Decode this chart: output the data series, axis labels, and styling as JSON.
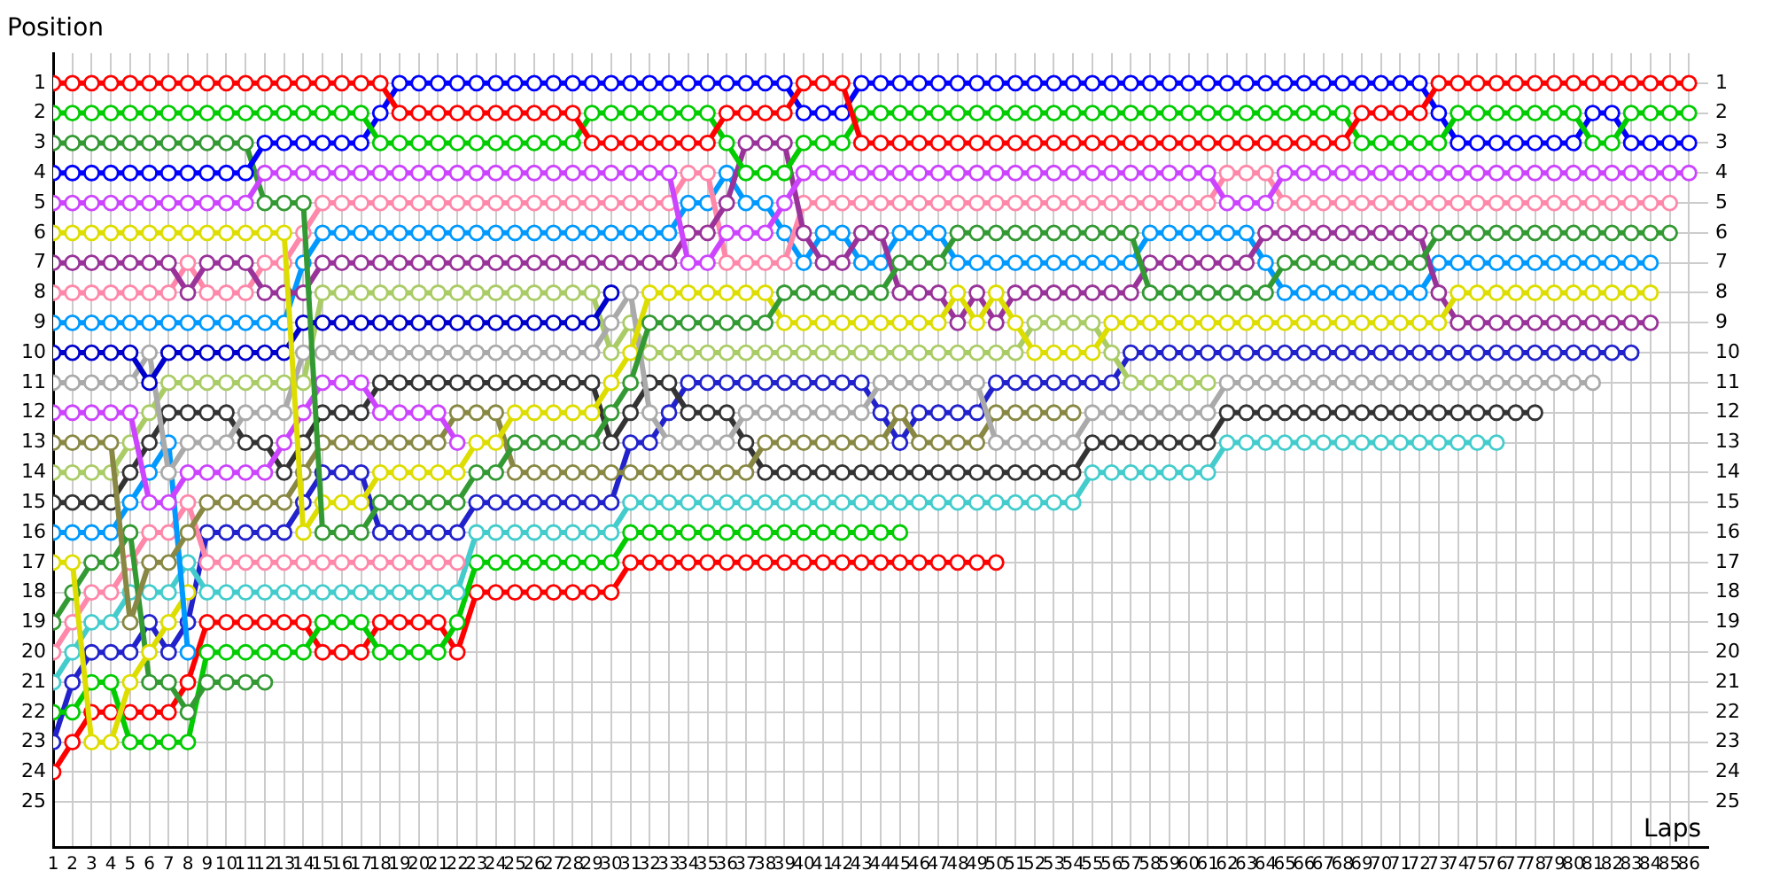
{
  "chart_data": {
    "type": "line",
    "xlabel": "Laps",
    "ylabel": "Position",
    "grid": true,
    "marker": "circle",
    "line_style": "solid",
    "x": [
      1,
      2,
      3,
      4,
      5,
      6,
      7,
      8,
      9,
      10,
      11,
      12,
      13,
      14,
      15,
      16,
      17,
      18,
      19,
      20,
      21,
      22,
      23,
      24,
      25,
      26,
      27,
      28,
      29,
      30,
      31,
      32,
      33,
      34,
      35,
      36,
      37,
      38,
      39,
      40,
      41,
      42,
      43,
      44,
      45,
      46,
      47,
      48,
      49,
      50,
      51,
      52,
      53,
      54,
      55,
      56,
      57,
      58,
      59,
      60,
      61,
      62,
      63,
      64,
      65,
      66,
      67,
      68,
      69,
      70,
      71,
      72,
      73,
      74,
      75,
      76,
      77,
      78,
      79,
      80,
      81,
      82,
      83,
      84,
      85,
      86
    ],
    "xlim": [
      1,
      87
    ],
    "xticks": [
      1,
      2,
      3,
      4,
      5,
      6,
      7,
      8,
      9,
      10,
      11,
      12,
      13,
      14,
      15,
      16,
      17,
      18,
      19,
      20,
      21,
      22,
      23,
      24,
      25,
      26,
      27,
      28,
      29,
      30,
      31,
      32,
      33,
      34,
      35,
      36,
      37,
      38,
      39,
      40,
      41,
      42,
      43,
      44,
      45,
      46,
      47,
      48,
      49,
      50,
      51,
      52,
      53,
      54,
      55,
      56,
      57,
      58,
      59,
      60,
      61,
      62,
      63,
      64,
      65,
      66,
      67,
      68,
      69,
      70,
      71,
      72,
      73,
      74,
      75,
      76,
      77,
      78,
      79,
      80,
      81,
      82,
      83,
      84,
      85,
      86
    ],
    "ylim": [
      26.5,
      0
    ],
    "yticks": [
      1,
      2,
      3,
      4,
      5,
      6,
      7,
      8,
      9,
      10,
      11,
      12,
      13,
      14,
      15,
      16,
      17,
      18,
      19,
      20,
      21,
      22,
      23,
      24,
      25
    ],
    "y2lim": [
      26.5,
      0
    ],
    "y2ticks": [
      1,
      2,
      3,
      4,
      5,
      6,
      7,
      8,
      9,
      10,
      11,
      12,
      13,
      14,
      15,
      16,
      17,
      18,
      19,
      20,
      21,
      22,
      23,
      24,
      25
    ],
    "series": [
      {
        "color": "#ff0000",
        "values": [
          1,
          1,
          1,
          1,
          1,
          1,
          1,
          1,
          1,
          1,
          1,
          1,
          1,
          1,
          1,
          1,
          1,
          1,
          2,
          2,
          2,
          2,
          2,
          2,
          2,
          2,
          2,
          2,
          3,
          3,
          3,
          3,
          3,
          3,
          3,
          2,
          2,
          2,
          2,
          1,
          1,
          1,
          3,
          3,
          3,
          3,
          3,
          3,
          3,
          3,
          3,
          3,
          3,
          3,
          3,
          3,
          3,
          3,
          3,
          3,
          3,
          3,
          3,
          3,
          3,
          3,
          3,
          3,
          2,
          2,
          2,
          2,
          1,
          1,
          1,
          1,
          1,
          1,
          1,
          1,
          1,
          1,
          1,
          1,
          1,
          1
        ]
      },
      {
        "color": "#00cc00",
        "values": [
          2,
          2,
          2,
          2,
          2,
          2,
          2,
          2,
          2,
          2,
          2,
          2,
          2,
          2,
          2,
          2,
          2,
          3,
          3,
          3,
          3,
          3,
          3,
          3,
          3,
          3,
          3,
          3,
          2,
          2,
          2,
          2,
          2,
          2,
          2,
          3,
          4,
          4,
          4,
          3,
          3,
          3,
          2,
          2,
          2,
          2,
          2,
          2,
          2,
          2,
          2,
          2,
          2,
          2,
          2,
          2,
          2,
          2,
          2,
          2,
          2,
          2,
          2,
          2,
          2,
          2,
          2,
          2,
          3,
          3,
          3,
          3,
          3,
          2,
          2,
          2,
          2,
          2,
          2,
          2,
          3,
          3,
          2,
          2,
          2,
          2
        ]
      },
      {
        "color": "#0000ff",
        "values": [
          4,
          4,
          4,
          4,
          4,
          4,
          4,
          4,
          4,
          4,
          4,
          3,
          3,
          3,
          3,
          3,
          3,
          2,
          1,
          1,
          1,
          1,
          1,
          1,
          1,
          1,
          1,
          1,
          1,
          1,
          1,
          1,
          1,
          1,
          1,
          1,
          1,
          1,
          1,
          2,
          2,
          2,
          1,
          1,
          1,
          1,
          1,
          1,
          1,
          1,
          1,
          1,
          1,
          1,
          1,
          1,
          1,
          1,
          1,
          1,
          1,
          1,
          1,
          1,
          1,
          1,
          1,
          1,
          1,
          1,
          1,
          1,
          2,
          3,
          3,
          3,
          3,
          3,
          3,
          3,
          2,
          2,
          3,
          3,
          3,
          3
        ]
      },
      {
        "color": "#cc44ff",
        "values": [
          5,
          5,
          5,
          5,
          5,
          5,
          5,
          5,
          5,
          5,
          5,
          4,
          4,
          4,
          4,
          4,
          4,
          4,
          4,
          4,
          4,
          4,
          4,
          4,
          4,
          4,
          4,
          4,
          4,
          4,
          4,
          4,
          4,
          7,
          7,
          6,
          6,
          6,
          5,
          4,
          4,
          4,
          4,
          4,
          4,
          4,
          4,
          4,
          4,
          4,
          4,
          4,
          4,
          4,
          4,
          4,
          4,
          4,
          4,
          4,
          4,
          5,
          5,
          5,
          4,
          4,
          4,
          4,
          4,
          4,
          4,
          4,
          4,
          4,
          4,
          4,
          4,
          4,
          4,
          4,
          4,
          4,
          4,
          4,
          4,
          4
        ]
      },
      {
        "color": "#339933",
        "values": [
          3,
          3,
          3,
          3,
          3,
          3,
          3,
          3,
          3,
          3,
          3,
          5,
          5,
          5,
          16,
          16,
          16,
          15,
          15,
          15,
          15,
          15,
          14,
          14,
          13,
          13,
          13,
          13,
          13,
          12,
          11,
          9,
          9,
          9,
          9,
          9,
          9,
          9,
          8,
          8,
          8,
          8,
          8,
          8,
          7,
          7,
          7,
          6,
          6,
          6,
          6,
          6,
          6,
          6,
          6,
          6,
          6,
          8,
          8,
          8,
          8,
          8,
          8,
          8,
          7,
          7,
          7,
          7,
          7,
          7,
          7,
          7,
          6,
          6,
          6,
          6,
          6,
          6,
          6,
          6,
          6,
          6,
          6,
          6,
          6,
          null
        ]
      },
      {
        "color": "#dddd00",
        "values": [
          6,
          6,
          6,
          6,
          6,
          6,
          6,
          6,
          6,
          6,
          6,
          6,
          6,
          16,
          15,
          15,
          15,
          14,
          14,
          14,
          14,
          14,
          13,
          13,
          12,
          12,
          12,
          12,
          12,
          11,
          10,
          8,
          8,
          8,
          8,
          8,
          8,
          8,
          9,
          9,
          9,
          9,
          9,
          9,
          9,
          9,
          9,
          8,
          9,
          8,
          9,
          10,
          10,
          10,
          10,
          9,
          9,
          9,
          9,
          9,
          9,
          9,
          9,
          9,
          9,
          9,
          9,
          9,
          9,
          9,
          9,
          9,
          9,
          8,
          8,
          8,
          8,
          8,
          8,
          8,
          8,
          8,
          8,
          8,
          null,
          null
        ]
      },
      {
        "color": "#993399",
        "values": [
          7,
          7,
          7,
          7,
          7,
          7,
          7,
          8,
          7,
          7,
          7,
          8,
          8,
          8,
          7,
          7,
          7,
          7,
          7,
          7,
          7,
          7,
          7,
          7,
          7,
          7,
          7,
          7,
          7,
          7,
          7,
          7,
          7,
          6,
          6,
          5,
          3,
          3,
          3,
          6,
          7,
          7,
          6,
          6,
          8,
          8,
          8,
          9,
          8,
          9,
          8,
          8,
          8,
          8,
          8,
          8,
          8,
          7,
          7,
          7,
          7,
          7,
          7,
          6,
          6,
          6,
          6,
          6,
          6,
          6,
          6,
          6,
          8,
          9,
          9,
          9,
          9,
          9,
          9,
          9,
          9,
          9,
          9,
          9,
          null,
          null
        ]
      },
      {
        "color": "#ff88aa",
        "values": [
          8,
          8,
          8,
          8,
          8,
          8,
          8,
          7,
          8,
          8,
          8,
          7,
          7,
          6,
          5,
          5,
          5,
          5,
          5,
          5,
          5,
          5,
          5,
          5,
          5,
          5,
          5,
          5,
          5,
          5,
          5,
          5,
          5,
          4,
          4,
          7,
          7,
          7,
          7,
          5,
          5,
          5,
          5,
          5,
          5,
          5,
          5,
          5,
          5,
          5,
          5,
          5,
          5,
          5,
          5,
          5,
          5,
          5,
          5,
          5,
          5,
          4,
          4,
          4,
          5,
          5,
          5,
          5,
          5,
          5,
          5,
          5,
          5,
          5,
          5,
          5,
          5,
          5,
          5,
          5,
          5,
          5,
          5,
          5,
          5,
          null
        ]
      },
      {
        "color": "#0099ff",
        "values": [
          9,
          9,
          9,
          9,
          9,
          9,
          9,
          9,
          9,
          9,
          9,
          9,
          9,
          7,
          6,
          6,
          6,
          6,
          6,
          6,
          6,
          6,
          6,
          6,
          6,
          6,
          6,
          6,
          6,
          6,
          6,
          6,
          6,
          5,
          5,
          4,
          5,
          5,
          6,
          7,
          6,
          6,
          7,
          7,
          6,
          6,
          6,
          7,
          7,
          7,
          7,
          7,
          7,
          7,
          7,
          7,
          7,
          6,
          6,
          6,
          6,
          6,
          6,
          7,
          8,
          8,
          8,
          8,
          8,
          8,
          8,
          8,
          7,
          7,
          7,
          7,
          7,
          7,
          7,
          7,
          7,
          7,
          7,
          7,
          null,
          null
        ]
      },
      {
        "color": "#0000cc",
        "values": [
          10,
          10,
          10,
          10,
          10,
          11,
          10,
          10,
          10,
          10,
          10,
          10,
          10,
          9,
          9,
          9,
          9,
          9,
          9,
          9,
          9,
          9,
          9,
          9,
          9,
          9,
          9,
          9,
          9,
          8,
          null,
          null,
          null,
          null,
          null,
          null,
          null,
          null,
          null,
          null,
          null,
          null,
          null,
          null,
          null,
          null,
          null,
          null,
          null,
          null,
          null,
          null,
          null,
          null,
          null,
          null,
          null,
          null,
          null,
          null,
          null,
          null,
          null,
          null,
          null,
          null,
          null,
          null,
          null,
          null,
          null,
          null,
          null,
          null,
          null,
          null,
          null,
          null,
          null,
          null,
          null,
          null,
          null,
          null,
          null,
          null
        ]
      },
      {
        "color": "#aaaaaa",
        "values": [
          11,
          11,
          11,
          11,
          11,
          10,
          14,
          13,
          13,
          13,
          12,
          12,
          12,
          10,
          10,
          10,
          10,
          10,
          10,
          10,
          10,
          10,
          10,
          10,
          10,
          10,
          10,
          10,
          10,
          9,
          8,
          12,
          13,
          13,
          13,
          13,
          12,
          12,
          12,
          12,
          12,
          12,
          12,
          11,
          11,
          11,
          11,
          11,
          11,
          13,
          13,
          13,
          13,
          13,
          12,
          12,
          12,
          12,
          12,
          12,
          12,
          11,
          11,
          11,
          11,
          11,
          11,
          11,
          11,
          11,
          11,
          11,
          11,
          11,
          11,
          11,
          11,
          11,
          11,
          11,
          11,
          null,
          null,
          null,
          null,
          null
        ]
      },
      {
        "color": "#cc44ff",
        "values": [
          12,
          12,
          12,
          12,
          12,
          15,
          15,
          14,
          14,
          14,
          14,
          14,
          13,
          12,
          11,
          11,
          11,
          12,
          12,
          12,
          12,
          13,
          null,
          null,
          null,
          null,
          null,
          null,
          null,
          null,
          null,
          null,
          null,
          null,
          null,
          null,
          null,
          null,
          null,
          null,
          null,
          null,
          null,
          null,
          null,
          null,
          null,
          null,
          null,
          null,
          null,
          null,
          null,
          null,
          null,
          null,
          null,
          null,
          null,
          null,
          null,
          null,
          null,
          null,
          null,
          null,
          null,
          null,
          null,
          null,
          null,
          null,
          null,
          null,
          null,
          null,
          null,
          null,
          null,
          null,
          null,
          null,
          null,
          null,
          null,
          null
        ]
      },
      {
        "color": "#888844",
        "values": [
          13,
          13,
          13,
          13,
          19,
          17,
          17,
          16,
          15,
          15,
          15,
          15,
          15,
          14,
          13,
          13,
          13,
          13,
          13,
          13,
          13,
          12,
          12,
          12,
          14,
          14,
          14,
          14,
          14,
          14,
          14,
          14,
          14,
          14,
          14,
          14,
          14,
          13,
          13,
          13,
          13,
          13,
          13,
          13,
          12,
          13,
          13,
          13,
          13,
          12,
          12,
          12,
          12,
          12,
          null,
          null,
          null,
          null,
          null,
          null,
          null,
          null,
          null,
          null,
          null,
          null,
          null,
          null,
          null,
          null,
          null,
          null,
          null,
          null,
          null,
          null,
          null,
          null,
          null,
          null,
          null,
          null,
          null,
          null,
          null,
          null
        ]
      },
      {
        "color": "#aacc66",
        "values": [
          14,
          14,
          14,
          14,
          13,
          12,
          11,
          11,
          11,
          11,
          11,
          11,
          11,
          11,
          8,
          8,
          8,
          8,
          8,
          8,
          8,
          8,
          8,
          8,
          8,
          8,
          8,
          8,
          8,
          10,
          9,
          10,
          10,
          10,
          10,
          10,
          10,
          10,
          10,
          10,
          10,
          10,
          10,
          10,
          10,
          10,
          10,
          10,
          10,
          10,
          10,
          9,
          9,
          9,
          9,
          10,
          11,
          11,
          11,
          11,
          11,
          null,
          null,
          null,
          null,
          null,
          null,
          null,
          null,
          null,
          null,
          null,
          null,
          null,
          null,
          null,
          null,
          null,
          null,
          null,
          null,
          null,
          null,
          null,
          null,
          null
        ]
      },
      {
        "color": "#333333",
        "values": [
          15,
          15,
          15,
          15,
          14,
          13,
          12,
          12,
          12,
          12,
          13,
          13,
          14,
          13,
          12,
          12,
          12,
          11,
          11,
          11,
          11,
          11,
          11,
          11,
          11,
          11,
          11,
          11,
          11,
          13,
          12,
          11,
          11,
          12,
          12,
          12,
          13,
          14,
          14,
          14,
          14,
          14,
          14,
          14,
          14,
          14,
          14,
          14,
          14,
          14,
          14,
          14,
          14,
          14,
          13,
          13,
          13,
          13,
          13,
          13,
          13,
          12,
          12,
          12,
          12,
          12,
          12,
          12,
          12,
          12,
          12,
          12,
          12,
          12,
          12,
          12,
          12,
          12,
          null,
          null,
          null,
          null,
          null,
          null,
          null,
          null
        ]
      },
      {
        "color": "#0099ff",
        "values": [
          16,
          16,
          16,
          16,
          15,
          14,
          13,
          20,
          null,
          null,
          null,
          null,
          null,
          null,
          null,
          null,
          null,
          null,
          null,
          null,
          null,
          null,
          null,
          null,
          null,
          null,
          null,
          null,
          null,
          null,
          null,
          null,
          null,
          null,
          null,
          null,
          null,
          null,
          null,
          null,
          null,
          null,
          null,
          null,
          null,
          null,
          null,
          null,
          null,
          null,
          null,
          null,
          null,
          null,
          null,
          null,
          null,
          null,
          null,
          null,
          null,
          null,
          null,
          null,
          null,
          null,
          null,
          null,
          null,
          null,
          null,
          null,
          null,
          null,
          null,
          null,
          null,
          null,
          null,
          null,
          null,
          null,
          null,
          null,
          null,
          null
        ]
      },
      {
        "color": "#dddd00",
        "values": [
          17,
          17,
          23,
          23,
          21,
          20,
          19,
          18,
          null,
          null,
          null,
          null,
          null,
          null,
          null,
          null,
          null,
          null,
          null,
          null,
          null,
          null,
          null,
          null,
          null,
          null,
          null,
          null,
          null,
          null,
          null,
          null,
          null,
          null,
          null,
          null,
          null,
          null,
          null,
          null,
          null,
          null,
          null,
          null,
          null,
          null,
          null,
          null,
          null,
          null,
          null,
          null,
          null,
          null,
          null,
          null,
          null,
          null,
          null,
          null,
          null,
          null,
          null,
          null,
          null,
          null,
          null,
          null,
          null,
          null,
          null,
          null,
          null,
          null,
          null,
          null,
          null,
          null,
          null,
          null,
          null,
          null,
          null,
          null,
          null,
          null
        ]
      },
      {
        "color": "#339933",
        "values": [
          19,
          18,
          17,
          17,
          16,
          21,
          21,
          22,
          21,
          21,
          21,
          21,
          null,
          null,
          null,
          null,
          null,
          null,
          null,
          null,
          null,
          null,
          null,
          null,
          null,
          null,
          null,
          null,
          null,
          null,
          null,
          null,
          null,
          null,
          null,
          null,
          null,
          null,
          null,
          null,
          null,
          null,
          null,
          null,
          null,
          null,
          null,
          null,
          null,
          null,
          null,
          null,
          null,
          null,
          null,
          null,
          null,
          null,
          null,
          null,
          null,
          null,
          null,
          null,
          null,
          null,
          null,
          null,
          null,
          null,
          null,
          null,
          null,
          null,
          null,
          null,
          null,
          null,
          null,
          null,
          null,
          null,
          null,
          null,
          null,
          null
        ]
      },
      {
        "color": "#ff88aa",
        "values": [
          20,
          19,
          18,
          18,
          17,
          16,
          16,
          15,
          17,
          17,
          17,
          17,
          17,
          17,
          17,
          17,
          17,
          17,
          17,
          17,
          17,
          17,
          null,
          null,
          null,
          null,
          null,
          null,
          null,
          null,
          null,
          null,
          null,
          null,
          null,
          null,
          null,
          null,
          null,
          null,
          null,
          null,
          null,
          null,
          null,
          null,
          null,
          null,
          null,
          null,
          null,
          null,
          null,
          null,
          null,
          null,
          null,
          null,
          null,
          null,
          null,
          null,
          null,
          null,
          null,
          null,
          null,
          null,
          null,
          null,
          null,
          null,
          null,
          null,
          null,
          null,
          null,
          null,
          null,
          null,
          null,
          null,
          null,
          null,
          null,
          null
        ]
      },
      {
        "color": "#44cccc",
        "values": [
          21,
          20,
          19,
          19,
          18,
          18,
          18,
          17,
          18,
          18,
          18,
          18,
          18,
          18,
          18,
          18,
          18,
          18,
          18,
          18,
          18,
          18,
          16,
          16,
          16,
          16,
          16,
          16,
          16,
          16,
          15,
          15,
          15,
          15,
          15,
          15,
          15,
          15,
          15,
          15,
          15,
          15,
          15,
          15,
          15,
          15,
          15,
          15,
          15,
          15,
          15,
          15,
          15,
          15,
          14,
          14,
          14,
          14,
          14,
          14,
          14,
          13,
          13,
          13,
          13,
          13,
          13,
          13,
          13,
          13,
          13,
          13,
          13,
          13,
          13,
          13,
          null,
          null,
          null,
          null,
          null,
          null,
          null,
          null,
          null,
          null
        ]
      },
      {
        "color": "#00cc00",
        "values": [
          22,
          22,
          21,
          21,
          23,
          23,
          23,
          23,
          20,
          20,
          20,
          20,
          20,
          20,
          19,
          19,
          19,
          20,
          20,
          20,
          20,
          19,
          17,
          17,
          17,
          17,
          17,
          17,
          17,
          17,
          16,
          16,
          16,
          16,
          16,
          16,
          16,
          16,
          16,
          16,
          16,
          16,
          16,
          16,
          16,
          null,
          null,
          null,
          null,
          null,
          null,
          null,
          null,
          null,
          null,
          null,
          null,
          null,
          null,
          null,
          null,
          null,
          null,
          null,
          null,
          null,
          null,
          null,
          null,
          null,
          null,
          null,
          null,
          null,
          null,
          null,
          null,
          null,
          null,
          null,
          null,
          null,
          null,
          null,
          null,
          null
        ]
      },
      {
        "color": "#2222cc",
        "values": [
          23,
          21,
          20,
          20,
          20,
          19,
          20,
          19,
          16,
          16,
          16,
          16,
          16,
          15,
          14,
          14,
          14,
          16,
          16,
          16,
          16,
          16,
          15,
          15,
          15,
          15,
          15,
          15,
          15,
          15,
          13,
          13,
          12,
          11,
          11,
          11,
          11,
          11,
          11,
          11,
          11,
          11,
          11,
          12,
          13,
          12,
          12,
          12,
          12,
          11,
          11,
          11,
          11,
          11,
          11,
          11,
          10,
          10,
          10,
          10,
          10,
          10,
          10,
          10,
          10,
          10,
          10,
          10,
          10,
          10,
          10,
          10,
          10,
          10,
          10,
          10,
          10,
          10,
          10,
          10,
          10,
          10,
          10,
          null,
          null,
          null
        ]
      },
      {
        "color": "#ff0000",
        "values": [
          24,
          23,
          22,
          22,
          22,
          22,
          22,
          21,
          19,
          19,
          19,
          19,
          19,
          19,
          20,
          20,
          20,
          19,
          19,
          19,
          19,
          20,
          18,
          18,
          18,
          18,
          18,
          18,
          18,
          18,
          17,
          17,
          17,
          17,
          17,
          17,
          17,
          17,
          17,
          17,
          17,
          17,
          17,
          17,
          17,
          17,
          17,
          17,
          17,
          17,
          null,
          null,
          null,
          null,
          null,
          null,
          null,
          null,
          null,
          null,
          null,
          null,
          null,
          null,
          null,
          null,
          null,
          null,
          null,
          null,
          null,
          null,
          null,
          null,
          null,
          null,
          null,
          null,
          null,
          null,
          null,
          null,
          null,
          null,
          null,
          null
        ]
      }
    ]
  }
}
